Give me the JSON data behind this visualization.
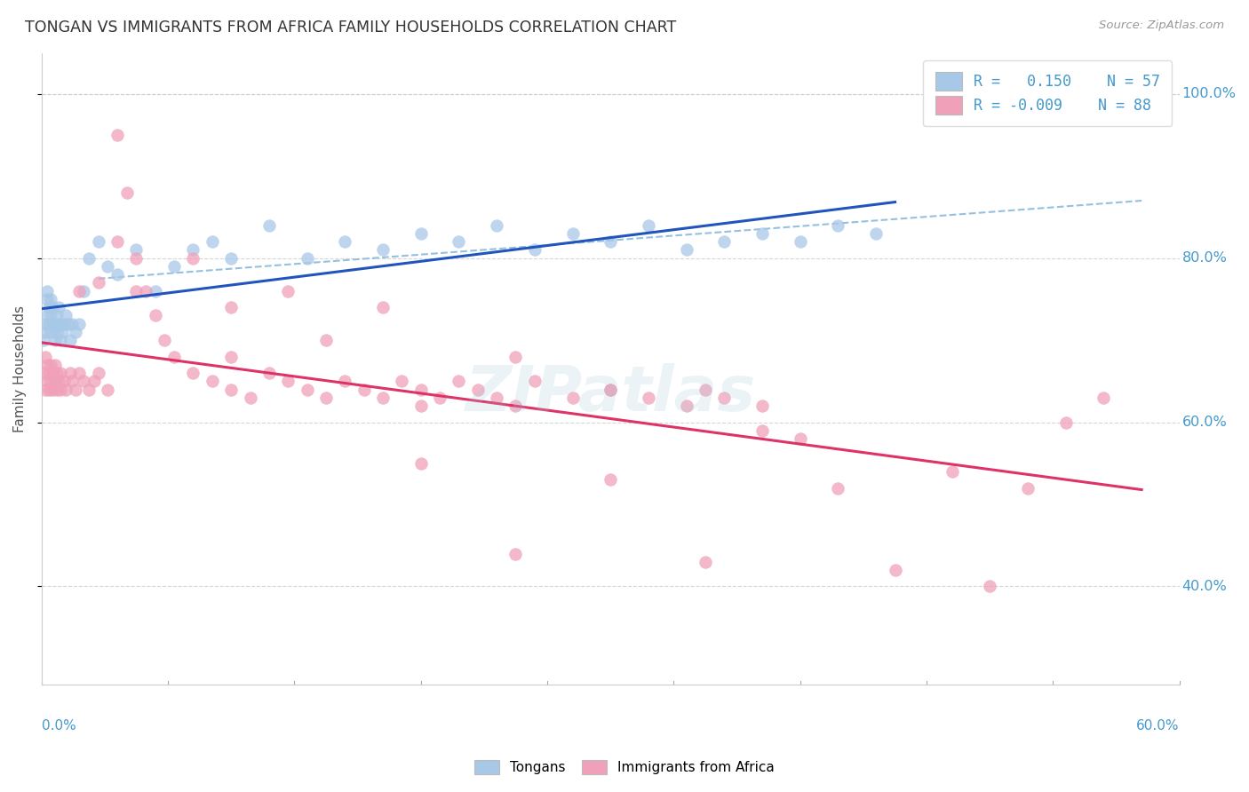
{
  "title": "TONGAN VS IMMIGRANTS FROM AFRICA FAMILY HOUSEHOLDS CORRELATION CHART",
  "source": "Source: ZipAtlas.com",
  "ylabel": "Family Households",
  "legend_label1": "Tongans",
  "legend_label2": "Immigrants from Africa",
  "r1": 0.15,
  "n1": 57,
  "r2": -0.009,
  "n2": 88,
  "color_blue": "#A8C8E8",
  "color_pink": "#F0A0B8",
  "color_trendline_blue": "#2255BB",
  "color_trendline_pink": "#DD3366",
  "color_dashed": "#88BBDD",
  "color_grid": "#CCCCCC",
  "color_title": "#333333",
  "color_axis_labels": "#4499CC",
  "color_source": "#999999",
  "watermark": "ZIPatlas",
  "xlim": [
    0.0,
    0.6
  ],
  "ylim": [
    0.28,
    1.05
  ],
  "yticks": [
    0.4,
    0.6,
    0.8,
    1.0
  ],
  "ytick_labels": [
    "40.0%",
    "60.0%",
    "80.0%",
    "100.0%"
  ],
  "blue_x": [
    0.001,
    0.002,
    0.002,
    0.003,
    0.003,
    0.003,
    0.004,
    0.004,
    0.005,
    0.005,
    0.005,
    0.006,
    0.006,
    0.007,
    0.007,
    0.008,
    0.008,
    0.009,
    0.009,
    0.01,
    0.01,
    0.011,
    0.012,
    0.013,
    0.014,
    0.015,
    0.016,
    0.018,
    0.02,
    0.022,
    0.025,
    0.03,
    0.035,
    0.04,
    0.05,
    0.06,
    0.07,
    0.08,
    0.09,
    0.1,
    0.12,
    0.14,
    0.16,
    0.18,
    0.2,
    0.22,
    0.24,
    0.26,
    0.28,
    0.3,
    0.32,
    0.34,
    0.36,
    0.38,
    0.4,
    0.42,
    0.44
  ],
  "blue_y": [
    0.7,
    0.72,
    0.71,
    0.73,
    0.75,
    0.76,
    0.72,
    0.74,
    0.71,
    0.73,
    0.75,
    0.72,
    0.74,
    0.7,
    0.72,
    0.71,
    0.73,
    0.72,
    0.74,
    0.7,
    0.72,
    0.71,
    0.72,
    0.73,
    0.72,
    0.7,
    0.72,
    0.71,
    0.72,
    0.76,
    0.8,
    0.82,
    0.79,
    0.78,
    0.81,
    0.76,
    0.79,
    0.81,
    0.82,
    0.8,
    0.84,
    0.8,
    0.82,
    0.81,
    0.83,
    0.82,
    0.84,
    0.81,
    0.83,
    0.82,
    0.84,
    0.81,
    0.82,
    0.83,
    0.82,
    0.84,
    0.83
  ],
  "pink_x": [
    0.001,
    0.002,
    0.002,
    0.003,
    0.003,
    0.004,
    0.004,
    0.005,
    0.005,
    0.006,
    0.006,
    0.007,
    0.007,
    0.008,
    0.008,
    0.009,
    0.01,
    0.01,
    0.012,
    0.013,
    0.015,
    0.016,
    0.018,
    0.02,
    0.022,
    0.025,
    0.028,
    0.03,
    0.035,
    0.04,
    0.045,
    0.05,
    0.055,
    0.06,
    0.065,
    0.07,
    0.08,
    0.09,
    0.1,
    0.11,
    0.12,
    0.13,
    0.14,
    0.15,
    0.16,
    0.17,
    0.18,
    0.19,
    0.2,
    0.21,
    0.22,
    0.23,
    0.24,
    0.25,
    0.26,
    0.28,
    0.3,
    0.32,
    0.34,
    0.36,
    0.38,
    0.4,
    0.42,
    0.45,
    0.48,
    0.5,
    0.52,
    0.54,
    0.56,
    0.3,
    0.35,
    0.25,
    0.2,
    0.15,
    0.1,
    0.05,
    0.03,
    0.02,
    0.1,
    0.2,
    0.3,
    0.38,
    0.04,
    0.08,
    0.13,
    0.18,
    0.25,
    0.35
  ],
  "pink_y": [
    0.66,
    0.64,
    0.68,
    0.65,
    0.67,
    0.64,
    0.66,
    0.65,
    0.67,
    0.64,
    0.66,
    0.65,
    0.67,
    0.64,
    0.66,
    0.65,
    0.64,
    0.66,
    0.65,
    0.64,
    0.66,
    0.65,
    0.64,
    0.66,
    0.65,
    0.64,
    0.65,
    0.66,
    0.64,
    0.95,
    0.88,
    0.8,
    0.76,
    0.73,
    0.7,
    0.68,
    0.66,
    0.65,
    0.64,
    0.63,
    0.66,
    0.65,
    0.64,
    0.63,
    0.65,
    0.64,
    0.63,
    0.65,
    0.64,
    0.63,
    0.65,
    0.64,
    0.63,
    0.62,
    0.65,
    0.63,
    0.64,
    0.63,
    0.62,
    0.63,
    0.62,
    0.58,
    0.52,
    0.42,
    0.54,
    0.4,
    0.52,
    0.6,
    0.63,
    0.53,
    0.43,
    0.44,
    0.55,
    0.7,
    0.74,
    0.76,
    0.77,
    0.76,
    0.68,
    0.62,
    0.64,
    0.59,
    0.82,
    0.8,
    0.76,
    0.74,
    0.68,
    0.64
  ]
}
